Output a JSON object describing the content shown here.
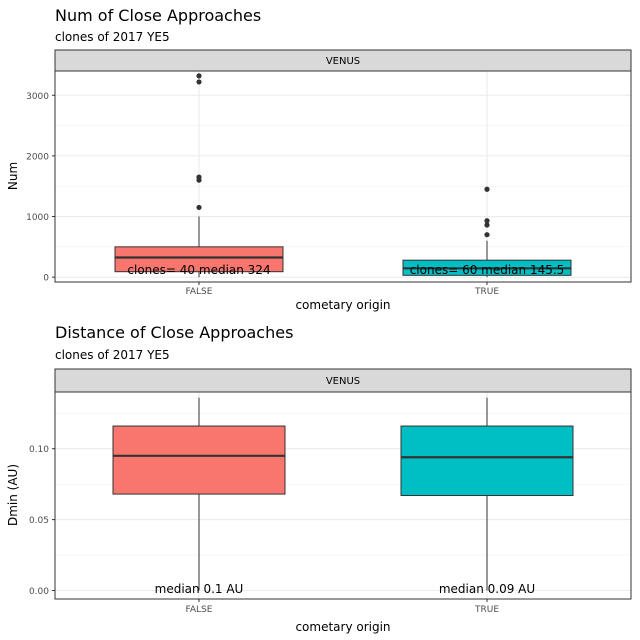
{
  "chart_data": [
    {
      "type": "box",
      "title": "Num of Close Approaches",
      "subtitle": "clones of 2017 YE5",
      "facet": "VENUS",
      "xlabel": "cometary origin",
      "ylabel": "Num",
      "categories": [
        "FALSE",
        "TRUE"
      ],
      "ylim": [
        -80,
        3400
      ],
      "yticks": [
        0,
        1000,
        2000,
        3000
      ],
      "ytick_labels": [
        "0",
        "1000",
        "2000",
        "3000"
      ],
      "grid": true,
      "boxes": [
        {
          "category": "FALSE",
          "color": "#F8766D",
          "q1": 90,
          "median": 324,
          "q3": 500,
          "whisker_low": 0,
          "whisker_high": 1000,
          "outliers": [
            1150,
            1600,
            1650,
            3220,
            3320
          ],
          "label": "clones= 40 median 324"
        },
        {
          "category": "TRUE",
          "color": "#00BFC4",
          "q1": 30,
          "median": 145.5,
          "q3": 280,
          "whisker_low": 0,
          "whisker_high": 600,
          "outliers": [
            700,
            860,
            930,
            1450
          ],
          "label": "clones= 60 median 145.5"
        }
      ]
    },
    {
      "type": "box",
      "title": "Distance of Close Approaches",
      "subtitle": "clones of 2017 YE5",
      "facet": "VENUS",
      "xlabel": "cometary origin",
      "ylabel": "Dmin (AU)",
      "categories": [
        "FALSE",
        "TRUE"
      ],
      "ylim": [
        -0.006,
        0.14
      ],
      "yticks": [
        0,
        0.05,
        0.1
      ],
      "ytick_labels": [
        "0.00",
        "0.05",
        "0.10"
      ],
      "grid": true,
      "boxes": [
        {
          "category": "FALSE",
          "color": "#F8766D",
          "q1": 0.068,
          "median": 0.095,
          "q3": 0.116,
          "whisker_low": 0.0,
          "whisker_high": 0.136,
          "outliers": [],
          "label": "median 0.1 AU"
        },
        {
          "category": "TRUE",
          "color": "#00BFC4",
          "q1": 0.067,
          "median": 0.094,
          "q3": 0.116,
          "whisker_low": 0.0,
          "whisker_high": 0.136,
          "outliers": [],
          "label": "median 0.09 AU"
        }
      ]
    }
  ]
}
